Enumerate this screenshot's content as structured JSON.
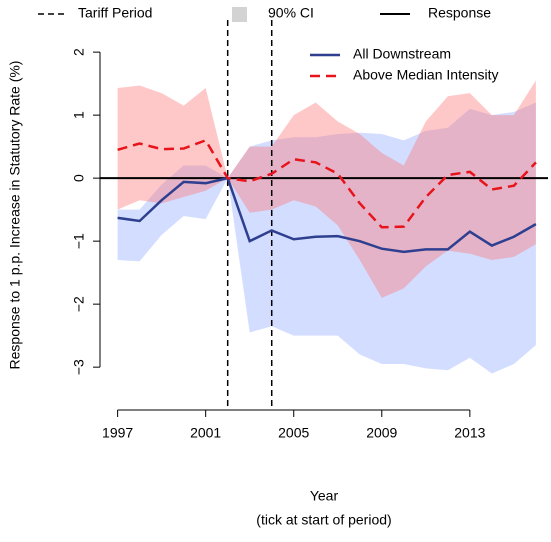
{
  "chart_data": {
    "type": "line",
    "xlabel": "Year",
    "xlabel_note": "(tick at start of period)",
    "ylabel": "Response to 1 p.p. Increase in Statutory Rate (%)",
    "x": [
      1997,
      1998,
      1999,
      2000,
      2001,
      2002,
      2003,
      2004,
      2005,
      2006,
      2007,
      2008,
      2009,
      2010,
      2011,
      2012,
      2013,
      2014,
      2015,
      2016
    ],
    "xlim": [
      1996.2,
      2016.55
    ],
    "xticks": [
      1997,
      2001,
      2005,
      2009,
      2013
    ],
    "ylim": [
      -3.68,
      2.51
    ],
    "yticks": [
      {
        "value": -3,
        "label": "−3"
      },
      {
        "value": -2,
        "label": "−2"
      },
      {
        "value": -1,
        "label": "−1"
      },
      0,
      1,
      2
    ],
    "tariff_period": {
      "label": "Tariff Period",
      "x": [
        2002,
        2004
      ],
      "color": "#000000"
    },
    "ci_label": "90% CI",
    "ci_legend_color": "#d3d3d3",
    "zero_line": {
      "label": "Response",
      "y": 0,
      "color": "#000000"
    },
    "series": [
      {
        "name": "All Downstream",
        "color": "#2e3f8f",
        "band_color": "rgba(140,165,255,0.38)",
        "dash": false,
        "values": [
          -0.63,
          -0.68,
          -0.35,
          -0.06,
          -0.08,
          0,
          -1.0,
          -0.83,
          -0.97,
          -0.93,
          -0.92,
          -1.0,
          -1.12,
          -1.17,
          -1.13,
          -1.13,
          -0.85,
          -1.07,
          -0.93,
          -0.73
        ],
        "upper": [
          -0.5,
          -0.5,
          -0.1,
          0.2,
          0.2,
          0,
          0.5,
          0.6,
          0.65,
          0.65,
          0.7,
          0.72,
          0.7,
          0.6,
          0.75,
          0.8,
          1.1,
          1.0,
          1.05,
          1.2
        ],
        "lower": [
          -1.3,
          -1.32,
          -0.9,
          -0.6,
          -0.65,
          0,
          -2.45,
          -2.35,
          -2.5,
          -2.5,
          -2.5,
          -2.8,
          -2.95,
          -2.95,
          -3.02,
          -3.05,
          -2.85,
          -3.1,
          -2.95,
          -2.65
        ]
      },
      {
        "name": "Above Median Intensity",
        "color": "#e8141c",
        "band_color": "rgba(255,110,110,0.38)",
        "dash": true,
        "values": [
          0.45,
          0.55,
          0.46,
          0.47,
          0.6,
          0,
          -0.05,
          0.07,
          0.3,
          0.25,
          0.07,
          -0.4,
          -0.78,
          -0.77,
          -0.3,
          0.05,
          0.1,
          -0.18,
          -0.12,
          0.25
        ],
        "upper": [
          1.43,
          1.47,
          1.35,
          1.15,
          1.43,
          0,
          0.5,
          0.5,
          1.0,
          1.2,
          0.9,
          0.7,
          0.4,
          0.2,
          0.9,
          1.3,
          1.35,
          1.0,
          1.0,
          1.55
        ],
        "lower": [
          -0.5,
          -0.35,
          -0.4,
          -0.3,
          -0.2,
          0,
          -0.55,
          -0.5,
          -0.35,
          -0.45,
          -0.75,
          -1.3,
          -1.9,
          -1.75,
          -1.4,
          -1.15,
          -1.2,
          -1.3,
          -1.25,
          -1.05
        ]
      }
    ]
  }
}
